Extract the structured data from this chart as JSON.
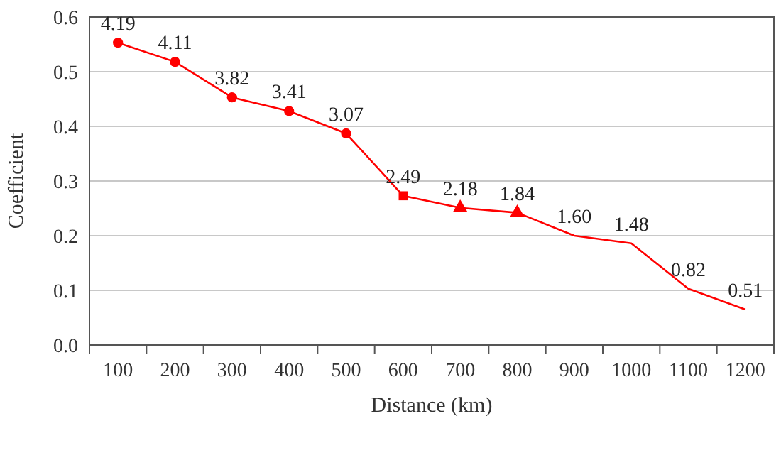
{
  "chart_data": {
    "type": "line",
    "xlabel": "Distance (km)",
    "ylabel": "Coefficient",
    "categories": [
      "100",
      "200",
      "300",
      "400",
      "500",
      "600",
      "700",
      "800",
      "900",
      "1000",
      "1100",
      "1200"
    ],
    "ylim": [
      0,
      0.6
    ],
    "yticks": [
      {
        "value": 0,
        "label": "0.0"
      },
      0.1,
      0.2,
      0.3,
      0.4,
      0.5,
      0.6
    ],
    "grid": "y",
    "series": [
      {
        "color": "#ff0000",
        "marker": "none",
        "values": [
          0.553,
          0.518,
          0.453,
          0.428,
          0.387,
          0.273,
          0.251,
          0.242,
          0.2,
          0.186,
          0.103,
          0.065
        ]
      },
      {
        "type": "scatter",
        "color": "#ff0000",
        "marker": "circle",
        "values": [
          0.553,
          0.518,
          0.453,
          0.428,
          0.387,
          null,
          null,
          null,
          null,
          null,
          null,
          null
        ]
      },
      {
        "type": "scatter",
        "color": "#ff0000",
        "marker": "square",
        "values": [
          null,
          null,
          null,
          null,
          null,
          0.273,
          null,
          null,
          null,
          null,
          null,
          null
        ]
      },
      {
        "type": "scatter",
        "color": "#ff0000",
        "marker": "triangle",
        "values": [
          null,
          null,
          null,
          null,
          null,
          null,
          0.251,
          0.242,
          null,
          null,
          null,
          null
        ]
      }
    ],
    "annotations": [
      {
        "text": "4.19",
        "x": "100",
        "y": 0.553
      },
      {
        "text": "4.11",
        "x": "200",
        "y": 0.518
      },
      {
        "text": "3.82",
        "x": "300",
        "y": 0.453
      },
      {
        "text": "3.41",
        "x": "400",
        "y": 0.428
      },
      {
        "text": "3.07",
        "x": "500",
        "y": 0.387
      },
      {
        "text": "2.49",
        "x": "600",
        "y": 0.273
      },
      {
        "text": "2.18",
        "x": "700",
        "y": 0.251
      },
      {
        "text": "1.84",
        "x": "800",
        "y": 0.242
      },
      {
        "text": "1.60",
        "x": "900",
        "y": 0.2
      },
      {
        "text": "1.48",
        "x": "1000",
        "y": 0.186
      },
      {
        "text": "0.82",
        "x": "1100",
        "y": 0.103
      },
      {
        "text": "0.51",
        "x": "1200",
        "y": 0.065
      }
    ]
  }
}
